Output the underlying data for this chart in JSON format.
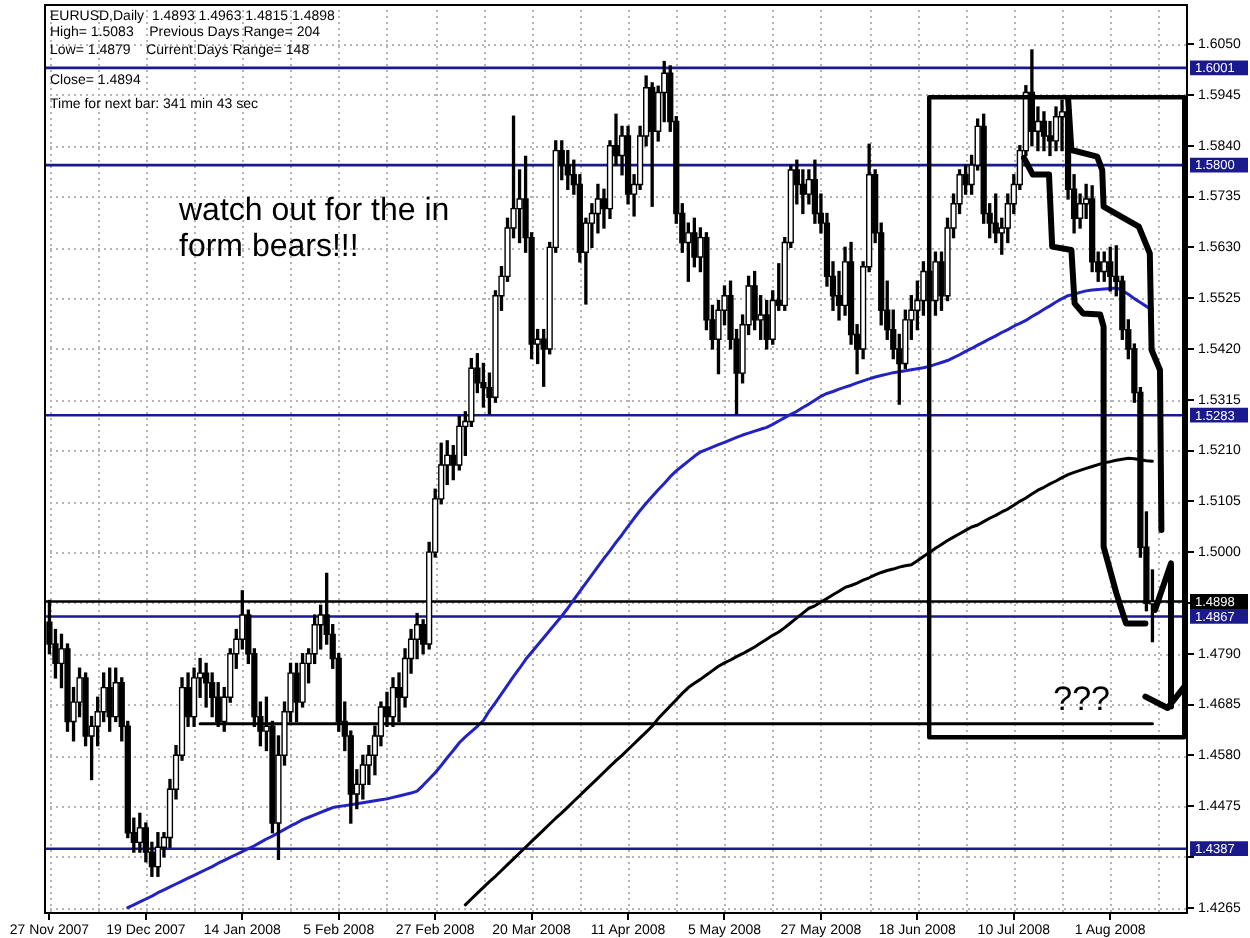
{
  "chart_data": {
    "type": "candlestick",
    "title": "EURUSD,Daily  1.4893 1.4963 1.4815 1.4898",
    "annotations": [
      "High= 1.5083    Previous Days Range= 204",
      "Low= 1.4879    Current Days Range= 148",
      "Close= 1.4894",
      "Time for next bar: 341 min 43 sec",
      "watch out for the in form bears!!!",
      "???"
    ],
    "categories": [
      "27 Nov 2007",
      null,
      null,
      null,
      null,
      null,
      null,
      null,
      null,
      null,
      null,
      null,
      null,
      null,
      null,
      null,
      "19 Dec 2007",
      null,
      null,
      null,
      null,
      null,
      null,
      null,
      null,
      null,
      null,
      null,
      null,
      null,
      null,
      null,
      "14 Jan 2008",
      null,
      null,
      null,
      null,
      null,
      null,
      null,
      null,
      null,
      null,
      null,
      null,
      null,
      null,
      null,
      "5 Feb 2008",
      null,
      null,
      null,
      null,
      null,
      null,
      null,
      null,
      null,
      null,
      null,
      null,
      null,
      null,
      null,
      "27 Feb 2008",
      null,
      null,
      null,
      null,
      null,
      null,
      null,
      null,
      null,
      null,
      null,
      null,
      null,
      null,
      null,
      "20 Mar 2008",
      null,
      null,
      null,
      null,
      null,
      null,
      null,
      null,
      null,
      null,
      null,
      null,
      null,
      null,
      null,
      "11 Apr 2008",
      null,
      null,
      null,
      null,
      null,
      null,
      null,
      null,
      null,
      null,
      null,
      null,
      null,
      null,
      null,
      "5 May 2008",
      null,
      null,
      null,
      null,
      null,
      null,
      null,
      null,
      null,
      null,
      null,
      null,
      null,
      null,
      null,
      "27 May 2008",
      null,
      null,
      null,
      null,
      null,
      null,
      null,
      null,
      null,
      null,
      null,
      null,
      null,
      null,
      null,
      "18 Jun 2008",
      null,
      null,
      null,
      null,
      null,
      null,
      null,
      null,
      null,
      null,
      null,
      null,
      null,
      null,
      null,
      "10 Jul 2008",
      null,
      null,
      null,
      null,
      null,
      null,
      null,
      null,
      null,
      null,
      null,
      null,
      null,
      null,
      null,
      "1 Aug 2008",
      null,
      null,
      null,
      null,
      null,
      null,
      null
    ],
    "series": [
      {
        "type": "line",
        "color": "#000000",
        "values": [
          null,
          null,
          null,
          null,
          null,
          null,
          null,
          null,
          null,
          null,
          null,
          null,
          null,
          null,
          null,
          null,
          null,
          null,
          null,
          null,
          null,
          null,
          null,
          null,
          null,
          1.4645,
          1.4645,
          1.4645,
          1.4645,
          1.4645,
          1.4645,
          1.4645,
          1.4645,
          1.4645,
          1.4645,
          1.4645,
          1.4645,
          1.4645,
          1.4645,
          1.4645,
          1.4645,
          1.4645,
          1.4645,
          1.4645,
          1.4645,
          1.4645,
          1.4645,
          1.4645,
          1.4645,
          1.4645,
          1.4645,
          1.4645,
          1.4645,
          1.4645,
          1.4645,
          1.4645,
          1.4645,
          1.4645,
          1.4645,
          1.4645,
          1.4645,
          1.4645,
          1.4645,
          1.4645,
          1.4645,
          1.4645,
          1.4645,
          1.4645,
          1.4645,
          1.4645,
          1.4645,
          1.4645,
          1.4645,
          1.4645,
          1.4645,
          1.4645,
          1.4645,
          1.4645,
          1.4645,
          1.4645,
          1.4645,
          1.4645,
          1.4645,
          1.4645,
          1.4645,
          1.4645,
          1.4645,
          1.4645,
          1.4645,
          1.4645,
          1.4645,
          1.4645,
          1.4645,
          1.4645,
          1.4645,
          1.4645,
          1.4645,
          1.4645,
          1.4645,
          1.4645,
          1.4645,
          1.4645,
          1.4645,
          1.4645,
          1.4645,
          1.4645,
          1.4645,
          1.4645,
          1.4645,
          1.4645,
          1.4645,
          1.4645,
          1.4645,
          1.4645,
          1.4645,
          1.4645,
          1.4645,
          1.4645,
          1.4645,
          1.4645,
          1.4645,
          1.4645,
          1.4645,
          1.4645,
          1.4645,
          1.4645,
          1.4645,
          1.4645,
          1.4645,
          1.4645,
          1.4645,
          1.4645,
          1.4645,
          1.4645,
          1.4645,
          1.4645,
          1.4645,
          1.4645,
          1.4645,
          1.4645,
          1.4645,
          1.4645,
          1.4645,
          1.4645,
          1.4645,
          1.4645,
          1.4645,
          1.4645,
          1.4645,
          1.4645,
          1.4645,
          1.4645,
          1.4645,
          1.4645,
          1.4645,
          1.4645,
          1.4645,
          1.4645,
          1.4645,
          1.4645,
          1.4645,
          1.4645,
          1.4645,
          1.4645,
          1.4645,
          1.4645,
          1.4645,
          1.4645,
          1.4645,
          1.4645,
          1.4645,
          1.4645,
          1.4645,
          1.4645,
          1.4645,
          1.4645,
          1.4645,
          1.4645,
          1.4645,
          1.4645,
          1.4645,
          1.4645,
          1.4645,
          1.4645
        ]
      },
      {
        "type": "line",
        "color": "#2323c4",
        "values": [
          null,
          null,
          null,
          null,
          null,
          null,
          null,
          null,
          null,
          null,
          null,
          null,
          null,
          1.4265,
          1.4271,
          1.4277,
          1.4283,
          1.4289,
          1.4296,
          1.4302,
          1.4308,
          1.4314,
          1.432,
          1.4326,
          1.4332,
          1.4338,
          1.4344,
          1.435,
          1.4357,
          1.4363,
          1.4369,
          1.4375,
          1.4381,
          1.4387,
          1.4393,
          1.44,
          1.4407,
          1.4413,
          1.442,
          1.4427,
          1.4434,
          1.444,
          1.4447,
          1.4452,
          1.4457,
          1.4462,
          1.4467,
          1.4472,
          1.4474,
          1.4476,
          1.4478,
          1.448,
          1.4482,
          1.4484,
          1.4486,
          1.4488,
          1.449,
          1.4493,
          1.4496,
          1.4499,
          1.4502,
          1.4506,
          1.4518,
          1.4531,
          1.4544,
          1.4559,
          1.4575,
          1.459,
          1.4606,
          1.4618,
          1.4629,
          1.464,
          1.4652,
          1.4672,
          1.4689,
          1.4707,
          1.4725,
          1.4743,
          1.476,
          1.4778,
          1.4793,
          1.4808,
          1.4823,
          1.4838,
          1.4853,
          1.4868,
          1.4884,
          1.4902,
          1.4919,
          1.4936,
          1.4953,
          1.497,
          1.4987,
          1.5003,
          1.502,
          1.5036,
          1.5053,
          1.507,
          1.5086,
          1.5101,
          1.5115,
          1.5129,
          1.5142,
          1.5156,
          1.5168,
          1.5178,
          1.5188,
          1.5198,
          1.5207,
          1.5212,
          1.5217,
          1.5222,
          1.5227,
          1.5232,
          1.5237,
          1.5242,
          1.5246,
          1.525,
          1.5254,
          1.5258,
          1.5264,
          1.5271,
          1.5278,
          1.5285,
          1.5291,
          1.5299,
          1.5306,
          1.5314,
          1.5322,
          1.5328,
          1.5332,
          1.5337,
          1.5341,
          1.5345,
          1.535,
          1.5354,
          1.5358,
          1.5362,
          1.5365,
          1.5368,
          1.5371,
          1.5373,
          1.5375,
          1.5377,
          1.5379,
          1.5381,
          1.5384,
          1.5388,
          1.5392,
          1.5396,
          1.5402,
          1.5408,
          1.5415,
          1.5421,
          1.5428,
          1.5434,
          1.5441,
          1.5447,
          1.5454,
          1.546,
          1.5467,
          1.5473,
          1.5479,
          1.5487,
          1.5494,
          1.5502,
          1.5509,
          1.5517,
          1.5524,
          1.553,
          1.5533,
          1.5537,
          1.554,
          1.5542,
          1.5543,
          1.5544,
          1.5545,
          1.5546,
          1.5541,
          1.5533,
          1.5524,
          1.5516,
          1.5508,
          1.5499
        ]
      },
      {
        "type": "line",
        "color": "#000000",
        "values": [
          null,
          null,
          null,
          null,
          null,
          null,
          null,
          null,
          null,
          null,
          null,
          null,
          null,
          null,
          null,
          null,
          null,
          null,
          null,
          null,
          null,
          null,
          null,
          null,
          null,
          null,
          null,
          null,
          null,
          null,
          null,
          null,
          null,
          null,
          null,
          null,
          null,
          null,
          null,
          null,
          null,
          null,
          null,
          null,
          null,
          null,
          null,
          null,
          null,
          null,
          null,
          null,
          null,
          null,
          null,
          null,
          null,
          null,
          null,
          null,
          null,
          null,
          null,
          null,
          null,
          null,
          null,
          null,
          null,
          1.4271,
          1.4283,
          1.4295,
          1.4307,
          1.4319,
          1.433,
          1.4342,
          1.4354,
          1.4366,
          1.4378,
          1.439,
          1.4402,
          1.4414,
          1.4426,
          1.4438,
          1.445,
          1.4461,
          1.4473,
          1.4485,
          1.4497,
          1.4509,
          1.4521,
          1.4533,
          1.4545,
          1.4557,
          1.4569,
          1.458,
          1.4592,
          1.4604,
          1.4616,
          1.4628,
          1.464,
          1.4656,
          1.4669,
          1.4682,
          1.4695,
          1.4708,
          1.472,
          1.4729,
          1.4737,
          1.4746,
          1.4755,
          1.4764,
          1.4771,
          1.4777,
          1.4784,
          1.479,
          1.4797,
          1.4804,
          1.4812,
          1.482,
          1.4828,
          1.4835,
          1.4844,
          1.4854,
          1.4864,
          1.4874,
          1.4884,
          1.4889,
          1.4897,
          1.4904,
          1.4912,
          1.4919,
          1.4927,
          1.4931,
          1.4936,
          1.4942,
          1.4947,
          1.4953,
          1.4958,
          1.4962,
          1.4965,
          1.4969,
          1.4972,
          1.4974,
          1.4982,
          1.4991,
          1.4999,
          1.5008,
          1.5016,
          1.5024,
          1.5031,
          1.5038,
          1.5045,
          1.5052,
          1.5056,
          1.5063,
          1.507,
          1.5076,
          1.5083,
          1.5089,
          1.5097,
          1.5105,
          1.5112,
          1.512,
          1.5128,
          1.5134,
          1.5141,
          1.5147,
          1.5154,
          1.516,
          1.5165,
          1.5169,
          1.5173,
          1.5177,
          1.5181,
          1.5185,
          1.5187,
          1.519,
          1.5192,
          1.5194,
          1.5193,
          1.5191,
          1.5189,
          1.5188
        ]
      },
      {
        "type": "candlestick",
        "color": "#000000",
        "colors": [
          "#000000",
          "#000000",
          "#ffffff",
          "#000000",
          "#ffffff",
          "#ffffff",
          "#000000",
          "#ffffff",
          "#ffffff",
          "#ffffff",
          "#000000",
          "#ffffff",
          "#000000",
          "#000000",
          "#000000",
          "#ffffff",
          "#000000",
          "#000000",
          "#ffffff",
          "#ffffff",
          "#ffffff",
          "#ffffff",
          "#ffffff",
          "#000000",
          "#ffffff",
          "#ffffff",
          "#000000",
          "#000000",
          "#000000",
          "#ffffff",
          "#ffffff",
          "#ffffff",
          "#ffffff",
          "#000000",
          "#000000",
          "#000000",
          "#ffffff",
          "#000000",
          "#ffffff",
          "#ffffff",
          "#ffffff",
          "#000000",
          "#ffffff",
          "#ffffff",
          "#ffffff",
          "#ffffff",
          "#000000",
          "#000000",
          "#000000",
          "#000000",
          "#000000",
          "#ffffff",
          "#ffffff",
          "#ffffff",
          "#ffffff",
          "#ffffff",
          "#000000",
          "#ffffff",
          "#000000",
          "#ffffff",
          "#ffffff",
          "#ffffff",
          "#000000",
          "#ffffff",
          "#ffffff",
          "#ffffff",
          "#ffffff",
          "#000000",
          "#ffffff",
          "#ffffff",
          "#ffffff",
          "#000000",
          "#000000",
          "#000000",
          "#ffffff",
          "#ffffff",
          "#ffffff",
          "#ffffff",
          "#ffffff",
          "#000000",
          "#000000",
          "#ffffff",
          "#000000",
          "#ffffff",
          "#ffffff",
          "#000000",
          "#000000",
          "#000000",
          "#000000",
          "#ffffff",
          "#ffffff",
          "#ffffff",
          "#000000",
          "#ffffff",
          "#000000",
          "#ffffff",
          "#000000",
          "#ffffff",
          "#ffffff",
          "#ffffff",
          "#000000",
          "#ffffff",
          "#ffffff",
          "#000000",
          "#000000",
          "#000000",
          "#ffffff",
          "#000000",
          "#ffffff",
          "#000000",
          "#000000",
          "#ffffff",
          "#ffffff",
          "#000000",
          "#000000",
          "#ffffff",
          "#ffffff",
          "#000000",
          "#ffffff",
          "#000000",
          "#ffffff",
          "#000000",
          "#ffffff",
          "#ffffff",
          "#000000",
          "#000000",
          "#ffffff",
          "#000000",
          "#000000",
          "#000000",
          "#000000",
          "#000000",
          "#ffffff",
          "#000000",
          "#000000",
          "#ffffff",
          "#ffffff",
          "#000000",
          "#000000",
          "#000000",
          "#000000",
          "#000000",
          "#ffffff",
          "#ffffff",
          "#ffffff",
          "#ffffff",
          "#000000",
          "#ffffff",
          "#000000",
          "#ffffff",
          "#ffffff",
          "#ffffff",
          "#000000",
          "#ffffff",
          "#ffffff",
          "#000000",
          "#000000",
          "#000000",
          "#ffffff",
          "#ffffff",
          "#ffffff",
          "#ffffff",
          "#ffffff",
          "#000000",
          "#ffffff",
          "#000000",
          "#000000",
          "#ffffff",
          "#ffffff",
          "#000000",
          "#000000",
          "#ffffff",
          "#ffffff",
          "#000000",
          "#000000",
          "#ffffff",
          "#000000",
          "#000000",
          "#000000",
          "#000000",
          "#000000",
          "#000000",
          "#000000",
          "#ffffff"
        ],
        "ohlc": [
          [
            1.4855,
            1.49,
            1.479,
            1.481
          ],
          [
            1.481,
            1.484,
            1.474,
            1.477
          ],
          [
            1.477,
            1.483,
            1.472,
            1.48
          ],
          [
            1.48,
            1.481,
            1.463,
            1.465
          ],
          [
            1.465,
            1.472,
            1.461,
            1.469
          ],
          [
            1.469,
            1.476,
            1.466,
            1.474
          ],
          [
            1.474,
            1.475,
            1.46,
            1.462
          ],
          [
            1.462,
            1.466,
            1.453,
            1.464
          ],
          [
            1.464,
            1.47,
            1.46,
            1.467
          ],
          [
            1.467,
            1.475,
            1.465,
            1.472
          ],
          [
            1.472,
            1.476,
            1.463,
            1.466
          ],
          [
            1.466,
            1.476,
            1.465,
            1.473
          ],
          [
            1.473,
            1.474,
            1.461,
            1.464
          ],
          [
            1.464,
            1.465,
            1.441,
            1.442
          ],
          [
            1.442,
            1.445,
            1.438,
            1.44
          ],
          [
            1.44,
            1.446,
            1.438,
            1.443
          ],
          [
            1.443,
            1.444,
            1.436,
            1.438
          ],
          [
            1.438,
            1.44,
            1.433,
            1.435
          ],
          [
            1.435,
            1.442,
            1.433,
            1.439
          ],
          [
            1.439,
            1.442,
            1.437,
            1.441
          ],
          [
            1.441,
            1.453,
            1.439,
            1.451
          ],
          [
            1.451,
            1.46,
            1.449,
            1.458
          ],
          [
            1.458,
            1.474,
            1.457,
            1.472
          ],
          [
            1.472,
            1.475,
            1.464,
            1.466
          ],
          [
            1.466,
            1.476,
            1.464,
            1.474
          ],
          [
            1.474,
            1.478,
            1.47,
            1.475
          ],
          [
            1.475,
            1.477,
            1.468,
            1.473
          ],
          [
            1.473,
            1.475,
            1.466,
            1.47
          ],
          [
            1.47,
            1.473,
            1.464,
            1.465
          ],
          [
            1.465,
            1.472,
            1.463,
            1.47
          ],
          [
            1.47,
            1.48,
            1.469,
            1.479
          ],
          [
            1.479,
            1.484,
            1.476,
            1.482
          ],
          [
            1.482,
            1.492,
            1.48,
            1.487
          ],
          [
            1.487,
            1.488,
            1.477,
            1.479
          ],
          [
            1.479,
            1.48,
            1.464,
            1.466
          ],
          [
            1.466,
            1.469,
            1.46,
            1.463
          ],
          [
            1.463,
            1.47,
            1.459,
            1.464
          ],
          [
            1.464,
            1.465,
            1.442,
            1.444
          ],
          [
            1.444,
            1.462,
            1.4365,
            1.458
          ],
          [
            1.458,
            1.469,
            1.456,
            1.467
          ],
          [
            1.467,
            1.477,
            1.465,
            1.475
          ],
          [
            1.475,
            1.477,
            1.465,
            1.469
          ],
          [
            1.469,
            1.479,
            1.468,
            1.477
          ],
          [
            1.477,
            1.48,
            1.473,
            1.479
          ],
          [
            1.479,
            1.487,
            1.477,
            1.485
          ],
          [
            1.485,
            1.489,
            1.48,
            1.487
          ],
          [
            1.487,
            1.4956,
            1.481,
            1.483
          ],
          [
            1.483,
            1.485,
            1.476,
            1.478
          ],
          [
            1.478,
            1.479,
            1.463,
            1.465
          ],
          [
            1.465,
            1.469,
            1.459,
            1.462
          ],
          [
            1.462,
            1.463,
            1.444,
            1.45
          ],
          [
            1.45,
            1.455,
            1.447,
            1.452
          ],
          [
            1.452,
            1.458,
            1.449,
            1.456
          ],
          [
            1.456,
            1.46,
            1.452,
            1.458
          ],
          [
            1.458,
            1.464,
            1.454,
            1.462
          ],
          [
            1.462,
            1.469,
            1.46,
            1.468
          ],
          [
            1.468,
            1.471,
            1.464,
            1.466
          ],
          [
            1.466,
            1.474,
            1.464,
            1.472
          ],
          [
            1.472,
            1.475,
            1.465,
            1.47
          ],
          [
            1.47,
            1.48,
            1.468,
            1.478
          ],
          [
            1.478,
            1.484,
            1.475,
            1.482
          ],
          [
            1.482,
            1.4873,
            1.478,
            1.485
          ],
          [
            1.485,
            1.486,
            1.479,
            1.481
          ],
          [
            1.481,
            1.502,
            1.48,
            1.5
          ],
          [
            1.5,
            1.513,
            1.499,
            1.511
          ],
          [
            1.511,
            1.5225,
            1.51,
            1.518
          ],
          [
            1.518,
            1.523,
            1.514,
            1.52
          ],
          [
            1.52,
            1.522,
            1.515,
            1.518
          ],
          [
            1.518,
            1.528,
            1.517,
            1.526
          ],
          [
            1.526,
            1.529,
            1.52,
            1.527
          ],
          [
            1.527,
            1.54,
            1.526,
            1.538
          ],
          [
            1.538,
            1.541,
            1.533,
            1.535
          ],
          [
            1.535,
            1.539,
            1.53,
            1.534
          ],
          [
            1.534,
            1.537,
            1.5286,
            1.532
          ],
          [
            1.532,
            1.554,
            1.531,
            1.553
          ],
          [
            1.553,
            1.559,
            1.55,
            1.557
          ],
          [
            1.557,
            1.569,
            1.556,
            1.567
          ],
          [
            1.567,
            1.5901,
            1.565,
            1.571
          ],
          [
            1.571,
            1.579,
            1.564,
            1.573
          ],
          [
            1.573,
            1.5818,
            1.562,
            1.565
          ],
          [
            1.565,
            1.566,
            1.54,
            1.543
          ],
          [
            1.543,
            1.546,
            1.539,
            1.544
          ],
          [
            1.544,
            1.546,
            1.5343,
            1.542
          ],
          [
            1.542,
            1.564,
            1.541,
            1.563
          ],
          [
            1.563,
            1.585,
            1.562,
            1.583
          ],
          [
            1.583,
            1.585,
            1.577,
            1.58
          ],
          [
            1.58,
            1.583,
            1.575,
            1.578
          ],
          [
            1.578,
            1.581,
            1.574,
            1.576
          ],
          [
            1.576,
            1.578,
            1.56,
            1.562
          ],
          [
            1.562,
            1.569,
            1.5513,
            1.568
          ],
          [
            1.568,
            1.572,
            1.563,
            1.57
          ],
          [
            1.57,
            1.576,
            1.566,
            1.573
          ],
          [
            1.573,
            1.575,
            1.567,
            1.571
          ],
          [
            1.571,
            1.585,
            1.569,
            1.584
          ],
          [
            1.584,
            1.5905,
            1.58,
            1.582
          ],
          [
            1.582,
            1.588,
            1.578,
            1.586
          ],
          [
            1.586,
            1.588,
            1.572,
            1.574
          ],
          [
            1.574,
            1.578,
            1.5695,
            1.576
          ],
          [
            1.576,
            1.588,
            1.575,
            1.586
          ],
          [
            1.586,
            1.5984,
            1.584,
            1.596
          ],
          [
            1.596,
            1.597,
            1.5715,
            1.587
          ],
          [
            1.587,
            1.5963,
            1.585,
            1.595
          ],
          [
            1.595,
            1.6014,
            1.589,
            1.599
          ],
          [
            1.599,
            1.6005,
            1.587,
            1.589
          ],
          [
            1.589,
            1.59,
            1.568,
            1.57
          ],
          [
            1.57,
            1.572,
            1.562,
            1.564
          ],
          [
            1.564,
            1.568,
            1.556,
            1.566
          ],
          [
            1.566,
            1.569,
            1.559,
            1.561
          ],
          [
            1.561,
            1.567,
            1.558,
            1.565
          ],
          [
            1.565,
            1.566,
            1.546,
            1.548
          ],
          [
            1.548,
            1.551,
            1.542,
            1.544
          ],
          [
            1.544,
            1.552,
            1.5369,
            1.55
          ],
          [
            1.55,
            1.555,
            1.547,
            1.553
          ],
          [
            1.553,
            1.556,
            1.542,
            1.544
          ],
          [
            1.544,
            1.546,
            1.5286,
            1.537
          ],
          [
            1.537,
            1.549,
            1.535,
            1.547
          ],
          [
            1.547,
            1.557,
            1.545,
            1.555
          ],
          [
            1.555,
            1.558,
            1.546,
            1.548
          ],
          [
            1.548,
            1.553,
            1.544,
            1.549
          ],
          [
            1.549,
            1.552,
            1.542,
            1.544
          ],
          [
            1.544,
            1.554,
            1.543,
            1.552
          ],
          [
            1.552,
            1.5596,
            1.55,
            1.551
          ],
          [
            1.551,
            1.565,
            1.55,
            1.564
          ],
          [
            1.564,
            1.58,
            1.563,
            1.579
          ],
          [
            1.579,
            1.581,
            1.572,
            1.576
          ],
          [
            1.576,
            1.579,
            1.57,
            1.574
          ],
          [
            1.574,
            1.579,
            1.572,
            1.577
          ],
          [
            1.577,
            1.581,
            1.568,
            1.57
          ],
          [
            1.57,
            1.574,
            1.566,
            1.568
          ],
          [
            1.568,
            1.57,
            1.555,
            1.557
          ],
          [
            1.557,
            1.56,
            1.55,
            1.553
          ],
          [
            1.553,
            1.558,
            1.548,
            1.551
          ],
          [
            1.551,
            1.563,
            1.549,
            1.56
          ],
          [
            1.56,
            1.564,
            1.543,
            1.545
          ],
          [
            1.545,
            1.547,
            1.5369,
            1.542
          ],
          [
            1.542,
            1.56,
            1.54,
            1.559
          ],
          [
            1.559,
            1.5843,
            1.558,
            1.578
          ],
          [
            1.578,
            1.579,
            1.564,
            1.566
          ],
          [
            1.566,
            1.568,
            1.547,
            1.55
          ],
          [
            1.55,
            1.556,
            1.544,
            1.546
          ],
          [
            1.546,
            1.55,
            1.54,
            1.542
          ],
          [
            1.542,
            1.545,
            1.5306,
            1.539
          ],
          [
            1.539,
            1.55,
            1.538,
            1.548
          ],
          [
            1.548,
            1.553,
            1.544,
            1.55
          ],
          [
            1.55,
            1.556,
            1.546,
            1.552
          ],
          [
            1.552,
            1.56,
            1.549,
            1.558
          ],
          [
            1.558,
            1.563,
            1.55,
            1.552
          ],
          [
            1.552,
            1.562,
            1.549,
            1.56
          ],
          [
            1.56,
            1.562,
            1.55,
            1.553
          ],
          [
            1.553,
            1.569,
            1.552,
            1.567
          ],
          [
            1.567,
            1.574,
            1.565,
            1.572
          ],
          [
            1.572,
            1.579,
            1.57,
            1.578
          ],
          [
            1.578,
            1.58,
            1.574,
            1.576
          ],
          [
            1.576,
            1.582,
            1.574,
            1.58
          ],
          [
            1.58,
            1.5895,
            1.579,
            1.588
          ],
          [
            1.588,
            1.5905,
            1.568,
            1.57
          ],
          [
            1.57,
            1.572,
            1.565,
            1.568
          ],
          [
            1.568,
            1.574,
            1.564,
            1.566
          ],
          [
            1.566,
            1.569,
            1.5616,
            1.567
          ],
          [
            1.567,
            1.574,
            1.564,
            1.572
          ],
          [
            1.572,
            1.578,
            1.57,
            1.576
          ],
          [
            1.576,
            1.584,
            1.575,
            1.583
          ],
          [
            1.583,
            1.5964,
            1.582,
            1.595
          ],
          [
            1.595,
            1.6038,
            1.584,
            1.587
          ],
          [
            1.587,
            1.592,
            1.583,
            1.589
          ],
          [
            1.589,
            1.591,
            1.583,
            1.586
          ],
          [
            1.586,
            1.589,
            1.582,
            1.585
          ],
          [
            1.585,
            1.592,
            1.583,
            1.59
          ],
          [
            1.59,
            1.5934,
            1.583,
            1.591
          ],
          [
            1.591,
            1.592,
            1.573,
            1.575
          ],
          [
            1.575,
            1.578,
            1.566,
            1.569
          ],
          [
            1.569,
            1.574,
            1.567,
            1.572
          ],
          [
            1.572,
            1.576,
            1.569,
            1.573
          ],
          [
            1.573,
            1.5757,
            1.558,
            1.56
          ],
          [
            1.56,
            1.562,
            1.556,
            1.558
          ],
          [
            1.558,
            1.562,
            1.556,
            1.56
          ],
          [
            1.56,
            1.563,
            1.554,
            1.557
          ],
          [
            1.557,
            1.5633,
            1.553,
            1.556
          ],
          [
            1.556,
            1.557,
            1.544,
            1.546
          ],
          [
            1.546,
            1.548,
            1.54,
            1.542
          ],
          [
            1.542,
            1.543,
            1.531,
            1.533
          ],
          [
            1.533,
            1.534,
            1.499,
            1.501
          ],
          [
            1.501,
            1.5083,
            1.4879,
            1.4894
          ],
          [
            1.4893,
            1.4963,
            1.4815,
            1.4898
          ]
        ]
      }
    ],
    "ylim": [
      1.4252,
      1.6133
    ],
    "yticks": [
      1.4265,
      {
        "value": 1.437,
        "label": null
      },
      1.4475,
      {
        "value": 1.458,
        "label": "1.4580"
      },
      1.4685,
      {
        "value": 1.479,
        "label": "1.4790"
      },
      {
        "value": 1.4895,
        "label": null
      },
      {
        "value": 1.5,
        "label": "1.5000"
      },
      1.5105,
      {
        "value": 1.521,
        "label": "1.5210"
      },
      1.5315,
      {
        "value": 1.542,
        "label": "1.5420"
      },
      1.5525,
      {
        "value": 1.563,
        "label": "1.5630"
      },
      1.5735,
      {
        "value": 1.584,
        "label": "1.5840"
      },
      1.5945,
      {
        "value": 1.605,
        "label": "1.6050"
      }
    ],
    "ref_lines": [
      {
        "axis": "y",
        "value": 1.6001,
        "label": "1.6001",
        "color": "#1a1a8e"
      },
      {
        "axis": "y",
        "value": 1.58,
        "label": "1.5800",
        "color": "#1a1a8e"
      },
      {
        "axis": "y",
        "value": 1.5283,
        "label": "1.5283",
        "color": "#1a1a8e"
      },
      {
        "axis": "y",
        "value": 1.4898,
        "label": "1.4898",
        "color": "#000000"
      },
      {
        "axis": "y",
        "value": 1.4867,
        "label": "1.4867",
        "color": "#1a1a8e"
      },
      {
        "axis": "y",
        "value": 1.4387,
        "label": "1.4387",
        "color": "#1a1a8e"
      }
    ],
    "grid": true
  }
}
